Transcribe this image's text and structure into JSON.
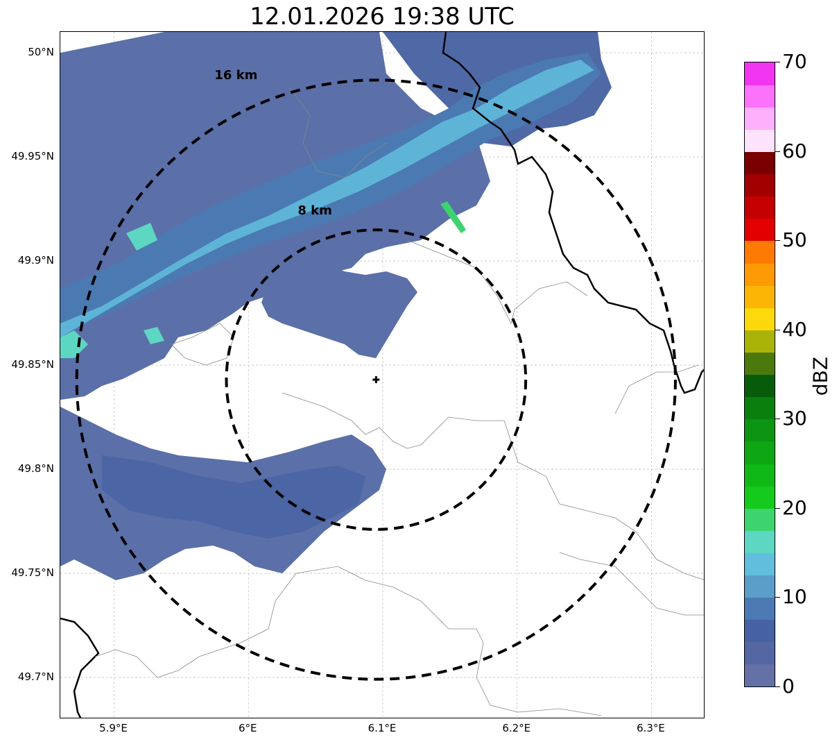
{
  "title": "12.01.2026 19:38 UTC",
  "map": {
    "lon_range": [
      5.86,
      6.34
    ],
    "lat_range": [
      49.68,
      50.01
    ],
    "radar_site": {
      "lon": 6.095,
      "lat": 49.843
    },
    "gridlines": true,
    "range_rings": [
      {
        "radius_km": 8,
        "label": "8 km"
      },
      {
        "radius_km": 16,
        "label": "16 km"
      }
    ],
    "lat_ticks": [
      {
        "value": 49.7,
        "label": "49.7°N"
      },
      {
        "value": 49.75,
        "label": "49.75°N"
      },
      {
        "value": 49.8,
        "label": "49.8°N"
      },
      {
        "value": 49.85,
        "label": "49.85°N"
      },
      {
        "value": 49.9,
        "label": "49.9°N"
      },
      {
        "value": 49.95,
        "label": "49.95°N"
      },
      {
        "value": 50.0,
        "label": "50°N"
      }
    ],
    "lon_ticks": [
      {
        "value": 5.9,
        "label": "5.9°E"
      },
      {
        "value": 6.0,
        "label": "6°E"
      },
      {
        "value": 6.1,
        "label": "6.1°E"
      },
      {
        "value": 6.2,
        "label": "6.2°E"
      },
      {
        "value": 6.3,
        "label": "6.3°E"
      }
    ],
    "reflectivity_band_main_dbz": "0-15",
    "reflectivity_band_max_dbz": "20-25"
  },
  "colorbar": {
    "label": "dBZ",
    "min": 0,
    "max": 70,
    "ticks": [
      "0",
      "10",
      "20",
      "30",
      "40",
      "50",
      "60",
      "70"
    ],
    "colors": [
      "#6371a6",
      "#5467a3",
      "#4662a4",
      "#4b7ab2",
      "#5a9ec9",
      "#61bedd",
      "#5dd6c2",
      "#3dd46f",
      "#14ca1c",
      "#10b815",
      "#0ea713",
      "#0c9510",
      "#0a7f0e",
      "#075c0a",
      "#4b790b",
      "#aab307",
      "#fcd90a",
      "#fdb505",
      "#fe9a03",
      "#fe7a03",
      "#e20100",
      "#c40000",
      "#a20000",
      "#7a0000",
      "#fde3fd",
      "#fdb0fc",
      "#fd72fb",
      "#f135f0"
    ]
  }
}
